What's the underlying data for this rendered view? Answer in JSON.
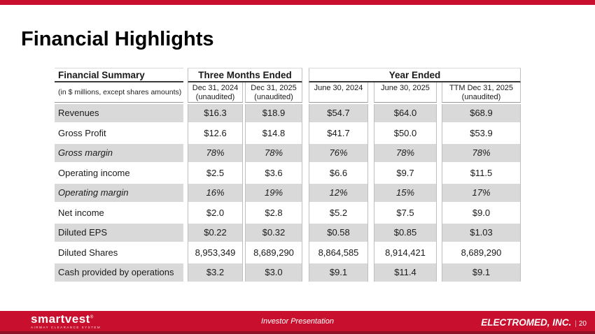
{
  "slide": {
    "title": "Financial Highlights"
  },
  "table": {
    "corner_header": "Financial Summary",
    "corner_subheader": "(in $ millions, except shares amounts)",
    "column_groups": [
      {
        "label": "Three Months Ended",
        "columns": [
          {
            "line1": "Dec 31, 2024",
            "line2": "(unaudited)"
          },
          {
            "line1": "Dec 31, 2025",
            "line2": "(unaudited)"
          }
        ]
      },
      {
        "label": "Year Ended",
        "columns": [
          {
            "line1": "June 30, 2024",
            "line2": ""
          },
          {
            "line1": "June 30, 2025",
            "line2": ""
          },
          {
            "line1": "TTM Dec 31, 2025",
            "line2": "(unaudited)"
          }
        ]
      }
    ],
    "rows": [
      {
        "label": "Revenues",
        "emphasis": "normal",
        "values": [
          "$16.3",
          "$18.9",
          "$54.7",
          "$64.0",
          "$68.9"
        ]
      },
      {
        "label": "Gross Profit",
        "emphasis": "normal",
        "values": [
          "$12.6",
          "$14.8",
          "$41.7",
          "$50.0",
          "$53.9"
        ]
      },
      {
        "label": "Gross margin",
        "emphasis": "italic",
        "values": [
          "78%",
          "78%",
          "76%",
          "78%",
          "78%"
        ]
      },
      {
        "label": "Operating income",
        "emphasis": "normal",
        "values": [
          "$2.5",
          "$3.6",
          "$6.6",
          "$9.7",
          "$11.5"
        ]
      },
      {
        "label": "Operating margin",
        "emphasis": "italic",
        "values": [
          "16%",
          "19%",
          "12%",
          "15%",
          "17%"
        ]
      },
      {
        "label": "Net income",
        "emphasis": "normal",
        "values": [
          "$2.0",
          "$2.8",
          "$5.2",
          "$7.5",
          "$9.0"
        ]
      },
      {
        "label": "Diluted EPS",
        "emphasis": "normal",
        "values": [
          "$0.22",
          "$0.32",
          "$0.58",
          "$0.85",
          "$1.03"
        ]
      },
      {
        "label": "Diluted Shares",
        "emphasis": "normal",
        "values": [
          "8,953,349",
          "8,689,290",
          "8,864,585",
          "8,914,421",
          "8,689,290"
        ]
      },
      {
        "label": "Cash provided by operations",
        "emphasis": "normal",
        "values": [
          "$3.2",
          "$3.0",
          "$9.1",
          "$11.4",
          "$9.1"
        ]
      }
    ]
  },
  "footer": {
    "logo_text": "smartvest",
    "logo_mark": "®",
    "logo_tagline": "AIRWAY CLEARANCE SYSTEM",
    "center_text": "Investor Presentation",
    "company": "ELECTROMED, INC.",
    "page_divider": "|",
    "page_number": "20"
  },
  "colors": {
    "accent_red": "#C8102E",
    "footer_dark_red": "#8F1126",
    "row_shade_gray": "#D9D9D9",
    "table_border_gray": "#BFBFBF"
  }
}
